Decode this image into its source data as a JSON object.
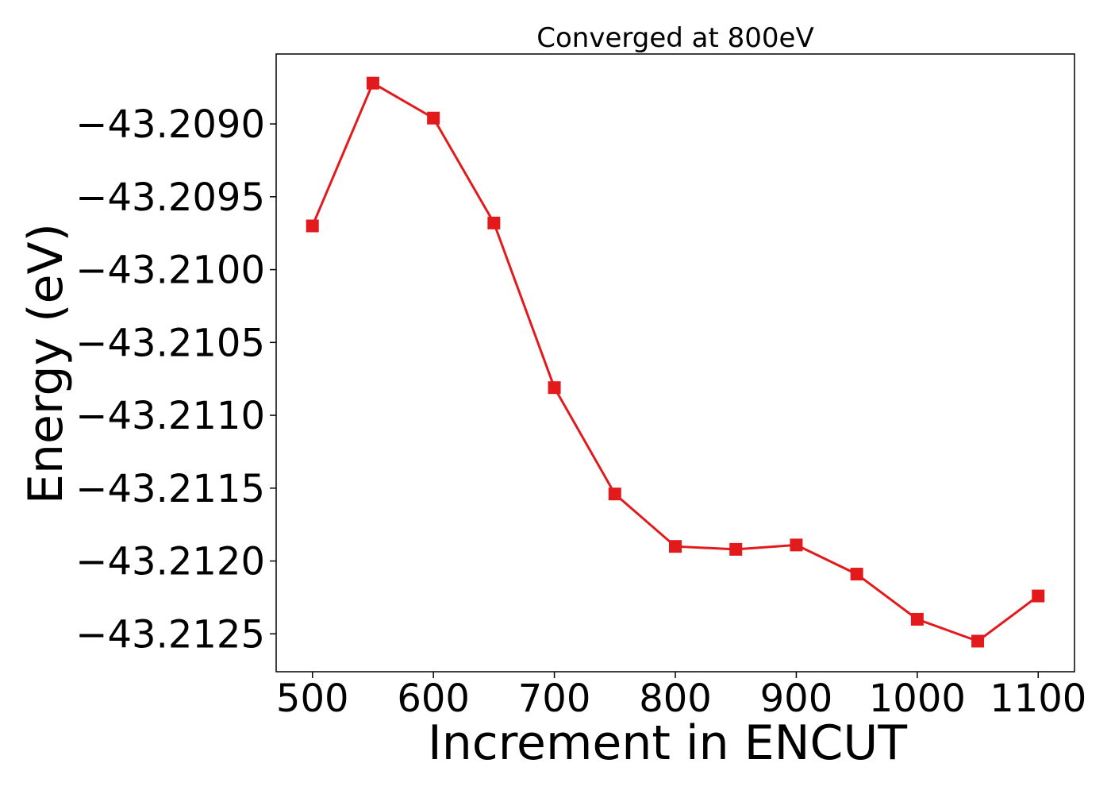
{
  "chart_data": {
    "type": "line",
    "title": "Converged at 800eV",
    "xlabel": "Increment in ENCUT",
    "ylabel": "Energy (eV)",
    "x": [
      500,
      550,
      600,
      650,
      700,
      750,
      800,
      850,
      900,
      950,
      1000,
      1050,
      1100
    ],
    "series": [
      {
        "name": "",
        "values": [
          -43.2097,
          -43.20872,
          -43.20896,
          -43.20968,
          -43.21081,
          -43.21154,
          -43.2119,
          -43.21192,
          -43.21189,
          -43.21209,
          -43.2124,
          -43.21255,
          -43.21224
        ],
        "color": "#e31a1c",
        "marker": "square"
      }
    ],
    "xlim": [
      470,
      1130
    ],
    "ylim": [
      -43.21276,
      -43.20852
    ],
    "xticks": [
      500,
      600,
      700,
      800,
      900,
      1000,
      1100
    ],
    "xtick_labels": [
      "500",
      "600",
      "700",
      "800",
      "900",
      "1000",
      "1100"
    ],
    "yticks": [
      -43.209,
      -43.2095,
      -43.21,
      -43.2105,
      -43.211,
      -43.2115,
      -43.212,
      -43.2125
    ],
    "ytick_labels": [
      "−43.2090",
      "−43.2095",
      "−43.2100",
      "−43.2105",
      "−43.2110",
      "−43.2115",
      "−43.2120",
      "−43.2125"
    ],
    "grid": false,
    "legend": "none"
  }
}
